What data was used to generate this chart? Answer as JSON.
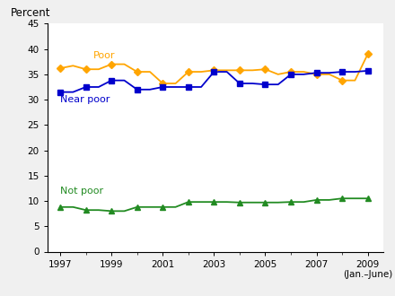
{
  "x_poor": [
    1997,
    1997.5,
    1998,
    1998.5,
    1999,
    1999.5,
    2000,
    2000.5,
    2001,
    2001.5,
    2002,
    2002.5,
    2003,
    2003.5,
    2004,
    2004.5,
    2005,
    2005.5,
    2006,
    2006.5,
    2007,
    2007.5,
    2008,
    2008.5,
    2009
  ],
  "y_poor": [
    36.2,
    36.7,
    36.0,
    36.0,
    37.0,
    37.0,
    35.5,
    35.5,
    33.2,
    33.2,
    35.5,
    35.5,
    35.8,
    35.8,
    35.8,
    35.8,
    36.0,
    35.0,
    35.5,
    35.5,
    35.0,
    35.0,
    33.8,
    33.8,
    39.0
  ],
  "x_near_poor": [
    1997,
    1997.5,
    1998,
    1998.5,
    1999,
    1999.5,
    2000,
    2000.5,
    2001,
    2001.5,
    2002,
    2002.5,
    2003,
    2003.5,
    2004,
    2004.5,
    2005,
    2005.5,
    2006,
    2006.5,
    2007,
    2007.5,
    2008,
    2008.5,
    2009
  ],
  "y_near_poor": [
    31.5,
    31.5,
    32.5,
    32.5,
    33.8,
    33.8,
    32.0,
    32.0,
    32.5,
    32.5,
    32.5,
    32.5,
    35.5,
    35.5,
    33.2,
    33.2,
    33.0,
    33.0,
    35.0,
    35.0,
    35.3,
    35.3,
    35.5,
    35.5,
    35.7
  ],
  "x_not_poor": [
    1997,
    1997.5,
    1998,
    1998.5,
    1999,
    1999.5,
    2000,
    2000.5,
    2001,
    2001.5,
    2002,
    2002.5,
    2003,
    2003.5,
    2004,
    2004.5,
    2005,
    2005.5,
    2006,
    2006.5,
    2007,
    2007.5,
    2008,
    2008.5,
    2009
  ],
  "y_not_poor": [
    8.8,
    8.8,
    8.2,
    8.2,
    8.0,
    8.0,
    8.8,
    8.8,
    8.8,
    8.8,
    9.8,
    9.8,
    9.8,
    9.8,
    9.7,
    9.7,
    9.7,
    9.7,
    9.8,
    9.8,
    10.2,
    10.2,
    10.5,
    10.5,
    10.5
  ],
  "x_markers_poor": [
    1997,
    1998,
    1999,
    2000,
    2001,
    2002,
    2003,
    2004,
    2005,
    2006,
    2007,
    2008,
    2009
  ],
  "y_markers_poor": [
    36.2,
    36.0,
    37.0,
    35.5,
    33.2,
    35.5,
    35.8,
    35.8,
    36.0,
    35.5,
    35.0,
    33.8,
    39.0
  ],
  "x_markers_near_poor": [
    1997,
    1998,
    1999,
    2000,
    2001,
    2002,
    2003,
    2004,
    2005,
    2006,
    2007,
    2008,
    2009
  ],
  "y_markers_near_poor": [
    31.5,
    32.5,
    33.8,
    32.0,
    32.5,
    32.5,
    35.5,
    33.2,
    33.0,
    35.0,
    35.3,
    35.5,
    35.7
  ],
  "x_markers_not_poor": [
    1997,
    1998,
    1999,
    2000,
    2001,
    2002,
    2003,
    2004,
    2005,
    2006,
    2007,
    2008,
    2009
  ],
  "y_markers_not_poor": [
    8.8,
    8.2,
    8.0,
    8.8,
    8.8,
    9.8,
    9.8,
    9.7,
    9.7,
    9.8,
    10.2,
    10.5,
    10.5
  ],
  "poor_color": "#FFA500",
  "near_poor_color": "#0000CC",
  "not_poor_color": "#228B22",
  "poor_label": "Poor",
  "near_poor_label": "Near poor",
  "not_poor_label": "Not poor",
  "ylabel": "Percent",
  "ylim": [
    0,
    45
  ],
  "yticks": [
    0,
    5,
    10,
    15,
    20,
    25,
    30,
    35,
    40,
    45
  ],
  "xticks": [
    1997,
    1999,
    2001,
    2003,
    2005,
    2007,
    2009
  ],
  "xlim": [
    1996.5,
    2009.6
  ],
  "xlabel_last": "(Jan.–June)",
  "background_color": "#f0f0f0",
  "plot_bg": "#ffffff"
}
